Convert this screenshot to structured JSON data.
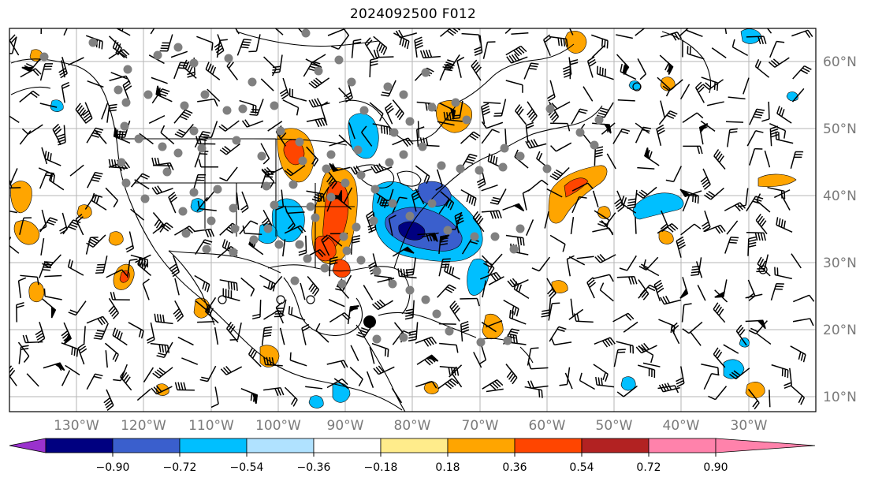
{
  "title": "2024092500 F012",
  "longitude_labels": [
    "130°W",
    "120°W",
    "110°W",
    "100°W",
    "90°W",
    "80°W",
    "70°W",
    "60°W",
    "50°W",
    "40°W",
    "30°W"
  ],
  "latitude_labels": [
    "60°N",
    "50°N",
    "40°N",
    "30°N",
    "20°N",
    "10°N"
  ],
  "colorbar": {
    "tick_labels": [
      "−0.90",
      "−0.72",
      "−0.54",
      "−0.36",
      "−0.18",
      "0.18",
      "0.36",
      "0.54",
      "0.72",
      "0.90"
    ],
    "colors": [
      "#9a32cd",
      "#000080",
      "#3a5fcd",
      "#00bfff",
      "#b0e2ff",
      "#ffffff",
      "#ffec8b",
      "#ffa500",
      "#ff4500",
      "#b22222",
      "#ff82ab"
    ],
    "extend": "both"
  },
  "markers": {
    "gray_dot_color": "#808080",
    "storm_center_color": "#000000",
    "wind_barb_color": "#000000"
  }
}
